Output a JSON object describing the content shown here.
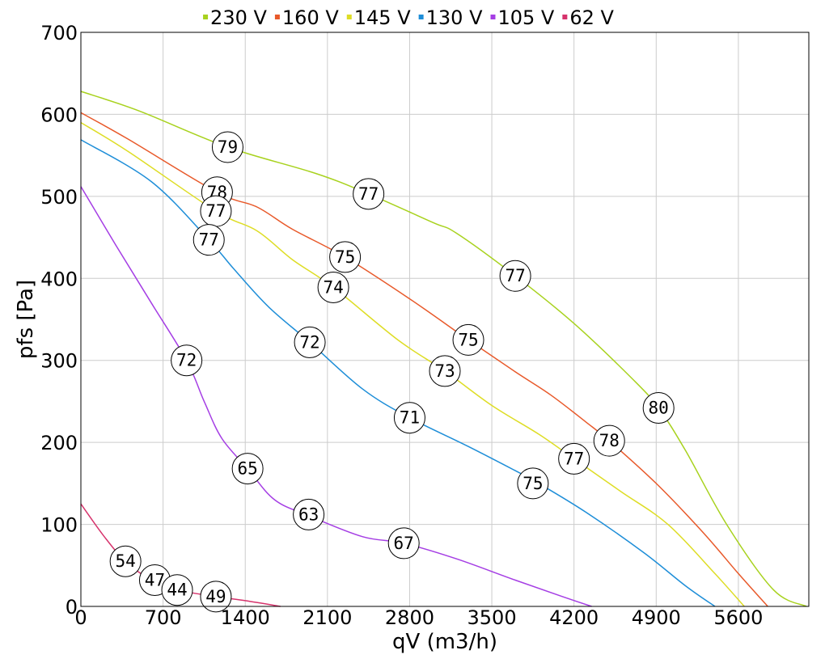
{
  "chart_data": {
    "type": "line",
    "xlabel": "qV (m3/h)",
    "ylabel": "pfs [Pa]",
    "xlim": [
      0,
      6200
    ],
    "ylim": [
      0,
      700
    ],
    "x_ticks": [
      0,
      700,
      1400,
      2100,
      2800,
      3500,
      4200,
      4900,
      5600
    ],
    "y_ticks": [
      0,
      100,
      200,
      300,
      400,
      500,
      600,
      700
    ],
    "grid": true,
    "legend_position": "top",
    "series": [
      {
        "name": "230 V",
        "color": "#a8d21e",
        "points": [
          [
            0,
            628
          ],
          [
            500,
            604
          ],
          [
            1250,
            560
          ],
          [
            2000,
            528
          ],
          [
            2450,
            503
          ],
          [
            3000,
            468
          ],
          [
            3200,
            455
          ],
          [
            3700,
            403
          ],
          [
            4200,
            345
          ],
          [
            4700,
            277
          ],
          [
            4920,
            242
          ],
          [
            5150,
            190
          ],
          [
            5500,
            100
          ],
          [
            5900,
            20
          ],
          [
            6180,
            0
          ]
        ],
        "markers": [
          {
            "x": 1250,
            "y": 560,
            "label": "79"
          },
          {
            "x": 2450,
            "y": 503,
            "label": "77"
          },
          {
            "x": 3700,
            "y": 403,
            "label": "77"
          },
          {
            "x": 4920,
            "y": 242,
            "label": "80"
          }
        ]
      },
      {
        "name": "160 V",
        "color": "#e8592a",
        "points": [
          [
            0,
            602
          ],
          [
            400,
            570
          ],
          [
            1160,
            505
          ],
          [
            1500,
            487
          ],
          [
            1800,
            460
          ],
          [
            2250,
            426
          ],
          [
            2800,
            375
          ],
          [
            3300,
            325
          ],
          [
            3700,
            286
          ],
          [
            4000,
            258
          ],
          [
            4300,
            225
          ],
          [
            4500,
            202
          ],
          [
            4900,
            150
          ],
          [
            5300,
            90
          ],
          [
            5600,
            40
          ],
          [
            5850,
            0
          ]
        ],
        "markers": [
          {
            "x": 1160,
            "y": 505,
            "label": "78"
          },
          {
            "x": 2250,
            "y": 426,
            "label": "75"
          },
          {
            "x": 3300,
            "y": 325,
            "label": "75"
          },
          {
            "x": 4500,
            "y": 202,
            "label": "78"
          }
        ]
      },
      {
        "name": "145 V",
        "color": "#dedd25",
        "points": [
          [
            0,
            590
          ],
          [
            400,
            555
          ],
          [
            1150,
            482
          ],
          [
            1500,
            458
          ],
          [
            1800,
            423
          ],
          [
            2150,
            389
          ],
          [
            2700,
            325
          ],
          [
            3100,
            287
          ],
          [
            3500,
            245
          ],
          [
            3900,
            210
          ],
          [
            4200,
            180
          ],
          [
            4600,
            140
          ],
          [
            5000,
            100
          ],
          [
            5400,
            40
          ],
          [
            5650,
            0
          ]
        ],
        "markers": [
          {
            "x": 1150,
            "y": 482,
            "label": "77"
          },
          {
            "x": 2150,
            "y": 389,
            "label": "74"
          },
          {
            "x": 3100,
            "y": 287,
            "label": "73"
          },
          {
            "x": 4200,
            "y": 180,
            "label": "77"
          }
        ]
      },
      {
        "name": "130 V",
        "color": "#1e8ed8",
        "points": [
          [
            0,
            569
          ],
          [
            600,
            518
          ],
          [
            1090,
            447
          ],
          [
            1300,
            412
          ],
          [
            1600,
            365
          ],
          [
            1950,
            322
          ],
          [
            2400,
            265
          ],
          [
            2800,
            230
          ],
          [
            3300,
            195
          ],
          [
            3800,
            158
          ],
          [
            3900,
            150
          ],
          [
            4300,
            115
          ],
          [
            4800,
            65
          ],
          [
            5150,
            25
          ],
          [
            5400,
            0
          ]
        ],
        "markers": [
          {
            "x": 1090,
            "y": 447,
            "label": "77"
          },
          {
            "x": 1950,
            "y": 322,
            "label": "72"
          },
          {
            "x": 2800,
            "y": 230,
            "label": "71"
          },
          {
            "x": 3850,
            "y": 150,
            "label": "75"
          }
        ]
      },
      {
        "name": "105 V",
        "color": "#a53ee4",
        "points": [
          [
            0,
            512
          ],
          [
            300,
            440
          ],
          [
            600,
            370
          ],
          [
            900,
            300
          ],
          [
            1050,
            250
          ],
          [
            1200,
            205
          ],
          [
            1420,
            168
          ],
          [
            1650,
            130
          ],
          [
            1950,
            110
          ],
          [
            2400,
            85
          ],
          [
            2750,
            77
          ],
          [
            3200,
            58
          ],
          [
            3700,
            32
          ],
          [
            4100,
            12
          ],
          [
            4350,
            0
          ]
        ],
        "markers": [
          {
            "x": 900,
            "y": 300,
            "label": "72"
          },
          {
            "x": 1420,
            "y": 168,
            "label": "65"
          },
          {
            "x": 1940,
            "y": 112,
            "label": "63"
          },
          {
            "x": 2750,
            "y": 77,
            "label": "67"
          }
        ]
      },
      {
        "name": "62 V",
        "color": "#d6336c",
        "points": [
          [
            0,
            125
          ],
          [
            200,
            85
          ],
          [
            380,
            55
          ],
          [
            600,
            32
          ],
          [
            820,
            20
          ],
          [
            1150,
            12
          ],
          [
            1400,
            7
          ],
          [
            1700,
            0
          ]
        ],
        "markers": [
          {
            "x": 380,
            "y": 55,
            "label": "54"
          },
          {
            "x": 630,
            "y": 32,
            "label": "47"
          },
          {
            "x": 820,
            "y": 20,
            "label": "44"
          },
          {
            "x": 1150,
            "y": 12,
            "label": "49"
          }
        ]
      }
    ]
  }
}
